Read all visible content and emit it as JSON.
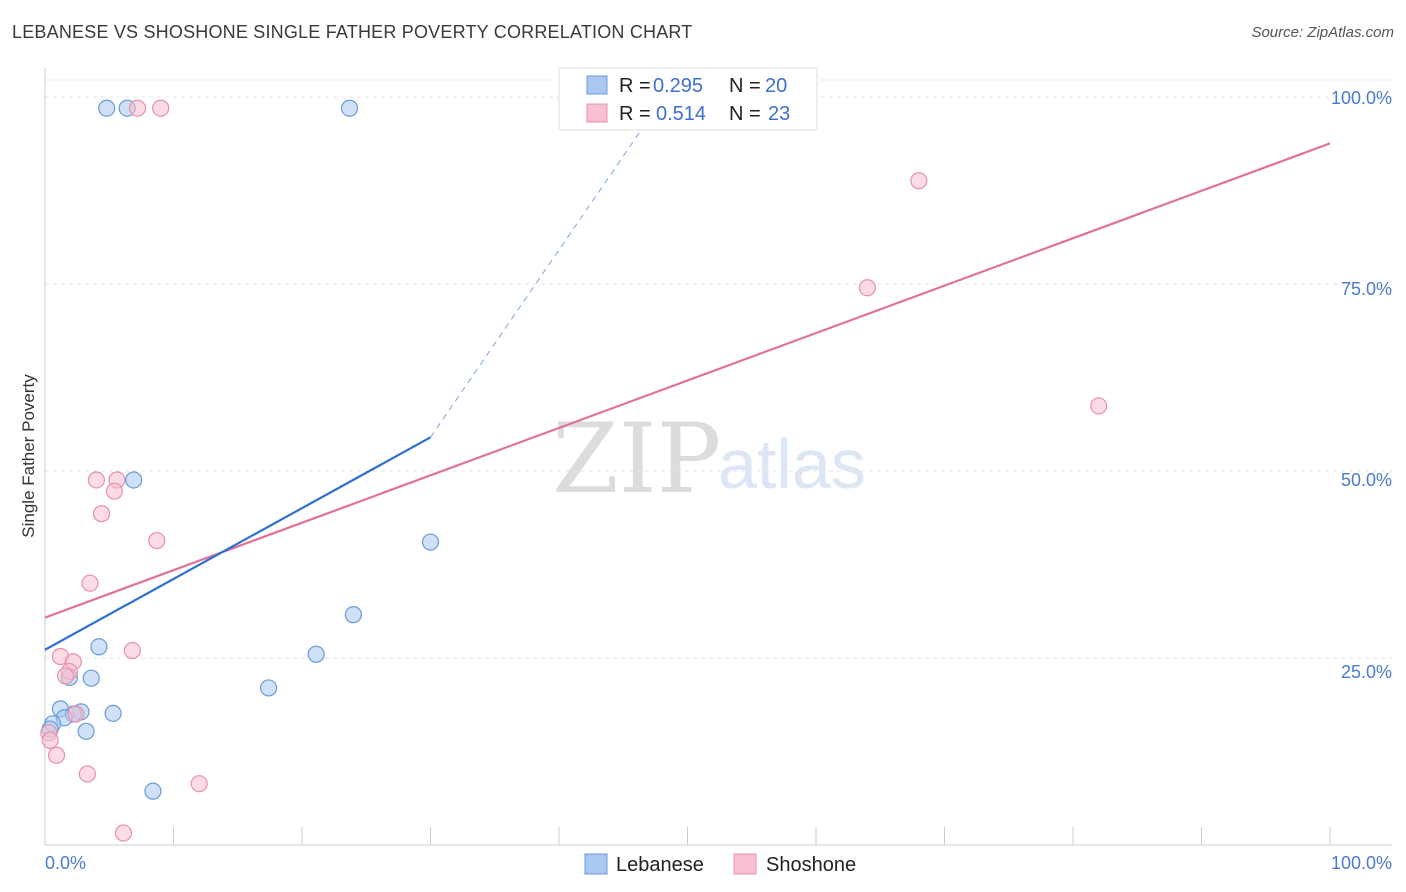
{
  "header": {
    "title": "LEBANESE VS SHOSHONE SINGLE FATHER POVERTY CORRELATION CHART",
    "source": "Source: ZipAtlas.com"
  },
  "watermark": {
    "zip": "ZIP",
    "atlas": "atlas"
  },
  "legend": {
    "rows": [
      {
        "r_label": "R =",
        "r_value": "0.295",
        "n_label": "N =",
        "n_value": "20",
        "color": "#a9c8f0",
        "stroke": "#6a9bd8"
      },
      {
        "r_label": "R =",
        "r_value": "0.514",
        "n_label": "N =",
        "n_value": "23",
        "color": "#f8c0d0",
        "stroke": "#e890ac"
      }
    ]
  },
  "chart_data": {
    "type": "scatter",
    "title": "LEBANESE VS SHOSHONE SINGLE FATHER POVERTY CORRELATION CHART",
    "xlabel": "",
    "ylabel": "Single Father Poverty",
    "xlim": [
      0,
      100
    ],
    "ylim": [
      0,
      100
    ],
    "x_tick_labels": [
      "0.0%",
      "100.0%"
    ],
    "y_ticks": [
      25,
      50,
      75,
      100
    ],
    "y_tick_labels": [
      "25.0%",
      "50.0%",
      "75.0%",
      "100.0%"
    ],
    "grid": true,
    "series": [
      {
        "name": "Lebanese",
        "color": "#6a9bd8",
        "fill": "#a9c8f0",
        "points": [
          [
            4.8,
            98.5
          ],
          [
            6.4,
            98.5
          ],
          [
            23.7,
            98.5
          ],
          [
            6.9,
            48.8
          ],
          [
            30.0,
            40.5
          ],
          [
            24.0,
            30.8
          ],
          [
            21.1,
            25.5
          ],
          [
            4.2,
            26.5
          ],
          [
            3.6,
            22.3
          ],
          [
            1.9,
            22.4
          ],
          [
            17.4,
            21.0
          ],
          [
            1.2,
            18.2
          ],
          [
            2.8,
            17.8
          ],
          [
            2.2,
            17.5
          ],
          [
            5.3,
            17.6
          ],
          [
            1.5,
            17.0
          ],
          [
            0.6,
            16.2
          ],
          [
            0.4,
            15.5
          ],
          [
            3.2,
            15.2
          ],
          [
            8.4,
            7.2
          ]
        ],
        "trend": {
          "x0": 0,
          "y0": 26.1,
          "x1": 30,
          "y1": 54.5,
          "dashed_to_x": 47.6,
          "dashed_to_y": 98.6
        }
      },
      {
        "name": "Shoshone",
        "color": "#e890ac",
        "fill": "#f8c0d0",
        "points": [
          [
            7.2,
            98.5
          ],
          [
            9.0,
            98.5
          ],
          [
            68.0,
            88.8
          ],
          [
            64.0,
            74.5
          ],
          [
            82.0,
            58.7
          ],
          [
            4.0,
            48.8
          ],
          [
            5.6,
            48.8
          ],
          [
            5.4,
            47.3
          ],
          [
            4.4,
            44.3
          ],
          [
            8.7,
            40.7
          ],
          [
            3.5,
            35.0
          ],
          [
            6.8,
            26.0
          ],
          [
            1.2,
            25.2
          ],
          [
            2.2,
            24.5
          ],
          [
            1.9,
            23.2
          ],
          [
            1.6,
            22.6
          ],
          [
            2.4,
            17.5
          ],
          [
            0.3,
            15.0
          ],
          [
            0.4,
            14.0
          ],
          [
            0.9,
            12.0
          ],
          [
            3.3,
            9.5
          ],
          [
            12.0,
            8.2
          ],
          [
            6.1,
            1.6
          ]
        ],
        "trend": {
          "x0": 0,
          "y0": 30.4,
          "x1": 100,
          "y1": 93.8
        }
      }
    ]
  }
}
